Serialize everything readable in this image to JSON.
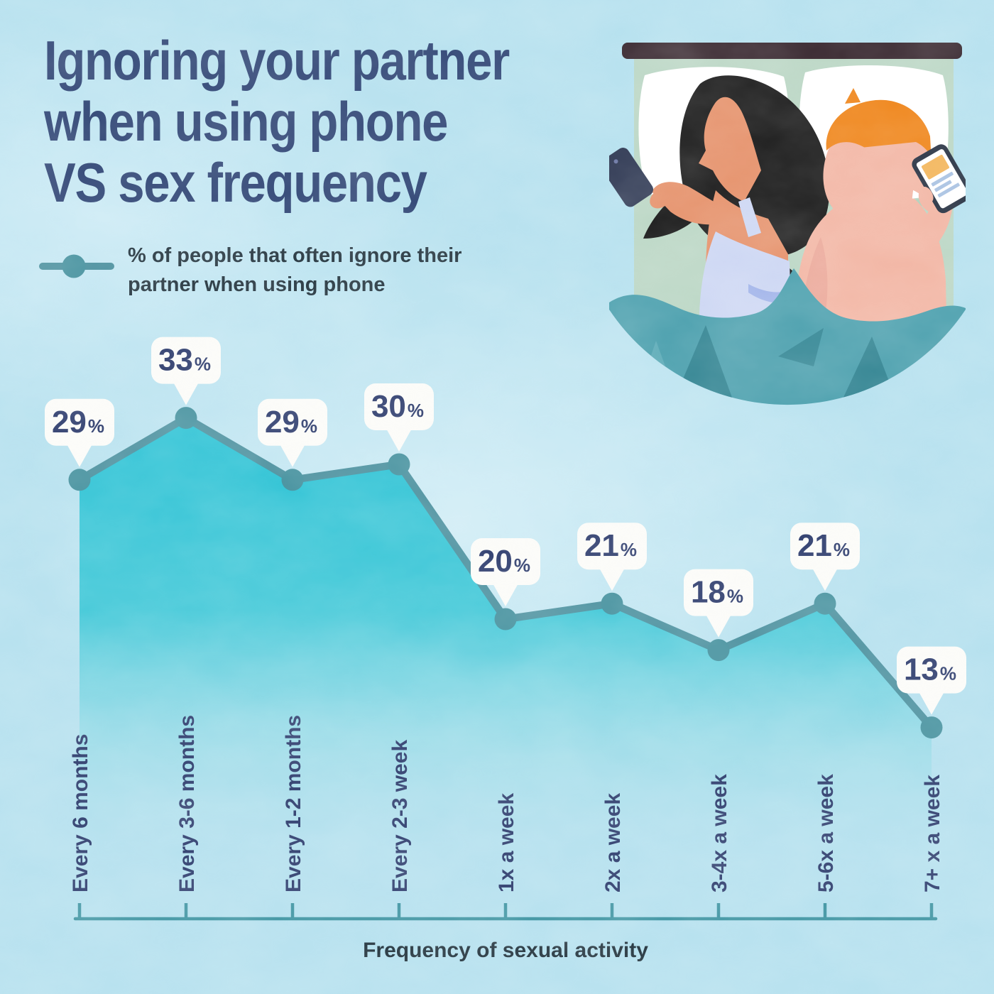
{
  "header": {
    "title_lines": [
      "Ignoring your partner",
      "when using phone",
      "VS sex frequency"
    ]
  },
  "legend": {
    "label": "% of people that often ignore their partner when using phone",
    "marker_icon": "line-dot-marker-icon"
  },
  "illustration": {
    "name": "couple-in-bed-ignoring-each-other-on-phones"
  },
  "chart_data": {
    "type": "line",
    "area_fill": true,
    "grid": false,
    "legend_position": "top-left",
    "categories": [
      "Every 6 months",
      "Every 3-6 months",
      "Every 1-2 months",
      "Every 2-3 week",
      "1x a week",
      "2x a week",
      "3-4x a week",
      "5-6x a week",
      "7+ x a week"
    ],
    "values": [
      29,
      33,
      29,
      30,
      20,
      21,
      18,
      21,
      13
    ],
    "unit": "%",
    "series_label": "% of people that often ignore their partner when using phone",
    "xlabel": "Frequency of sexual activity",
    "ylabel": "",
    "ylim": [
      0,
      40
    ]
  },
  "colors": {
    "background": "#b4e0ee",
    "title_navy": "#2d4373",
    "label_navy": "#2b3a6b",
    "text_dark": "#20313b",
    "line_teal": "#4c919f",
    "marker_teal": "#47929f",
    "axis_teal": "#3c93a1",
    "area_turquoise": "#28c1d4",
    "area_mid": "#39c6d6",
    "area_fade": "#8ed9e4",
    "bubble_bg": "#fbfbf8"
  }
}
